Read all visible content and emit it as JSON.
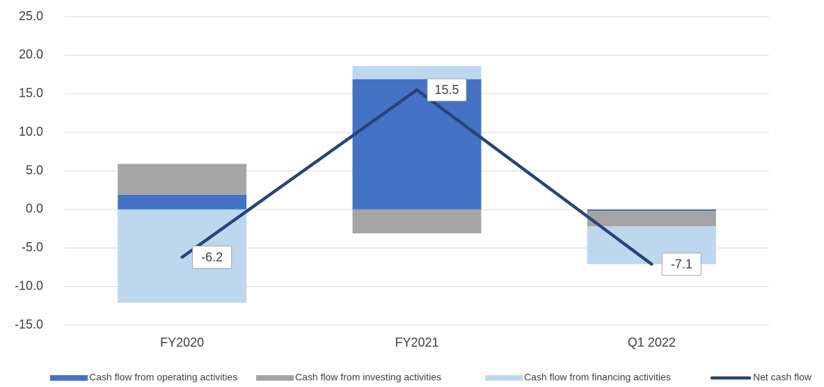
{
  "chart_data": {
    "type": "bar",
    "categories": [
      "FY2020",
      "FY2021",
      "Q1 2022"
    ],
    "series": [
      {
        "name": "Cash flow from operating activities",
        "color": "#4472c4",
        "values": [
          1.9,
          16.9,
          -0.2
        ]
      },
      {
        "name": "Cash flow from investing activities",
        "color": "#a5a5a5",
        "values": [
          4.0,
          -3.1,
          -2.0
        ]
      },
      {
        "name": "Cash flow from financing activities",
        "color": "#bdd7ee",
        "values": [
          -12.1,
          1.7,
          -4.9
        ]
      },
      {
        "name": "Net cash flow",
        "type": "line",
        "color": "#264478",
        "values": [
          -6.2,
          15.5,
          -7.1
        ]
      }
    ],
    "ylim": [
      -15,
      25
    ],
    "yticks": [
      {
        "value": -15,
        "label": "-15.0"
      },
      {
        "value": -10,
        "label": "-10.0"
      },
      {
        "value": -5,
        "label": "-5.0"
      },
      {
        "value": 0,
        "label": "0.0"
      },
      {
        "value": 5,
        "label": "5.0"
      },
      {
        "value": 10,
        "label": "10.0"
      },
      {
        "value": 15,
        "label": "15.0"
      },
      {
        "value": 20,
        "label": "20.0"
      },
      {
        "value": 25,
        "label": "25.0"
      }
    ],
    "grid": true,
    "legend": "bottom"
  }
}
